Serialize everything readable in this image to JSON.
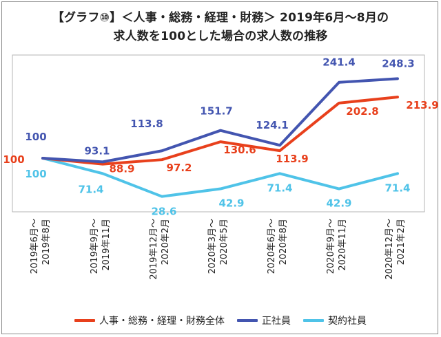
{
  "title_line1": "【グラフ⑩】＜人事・総務・経理・財務＞ 2019年6月～8月の",
  "title_line2": "求人数を100とした場合の求人数の推移",
  "chart_data": {
    "type": "line",
    "categories": [
      "2019年6月～2019年8月",
      "2019年9月～2019年11月",
      "2019年12月～2020年2月",
      "2020年3月～2020年5月",
      "2020年6月～2020年8月",
      "2020年9月～2020年11月",
      "2020年12月～2021年2月"
    ],
    "category_lines": [
      [
        "2019年6月～",
        "2019年8月"
      ],
      [
        "2019年9月～",
        "2019年11月"
      ],
      [
        "2019年12月～",
        "2020年2月"
      ],
      [
        "2020年3月～",
        "2020年5月"
      ],
      [
        "2020年6月～",
        "2020年8月"
      ],
      [
        "2020年9月～",
        "2020年11月"
      ],
      [
        "2020年12月～",
        "2021年2月"
      ]
    ],
    "ylim": [
      0,
      260
    ],
    "grid": false,
    "legend_position": "bottom",
    "series": [
      {
        "name": "人事・総務・経理・財務全体",
        "color": "#e8401c",
        "values": [
          100,
          88.9,
          97.2,
          130.6,
          113.9,
          202.8,
          213.9
        ]
      },
      {
        "name": "正社員",
        "color": "#4355b0",
        "values": [
          100,
          93.1,
          113.8,
          151.7,
          124.1,
          241.4,
          248.3
        ]
      },
      {
        "name": "契約社員",
        "color": "#4fc3e8",
        "values": [
          100,
          71.4,
          28.6,
          42.9,
          71.4,
          42.9,
          71.4
        ]
      }
    ]
  }
}
